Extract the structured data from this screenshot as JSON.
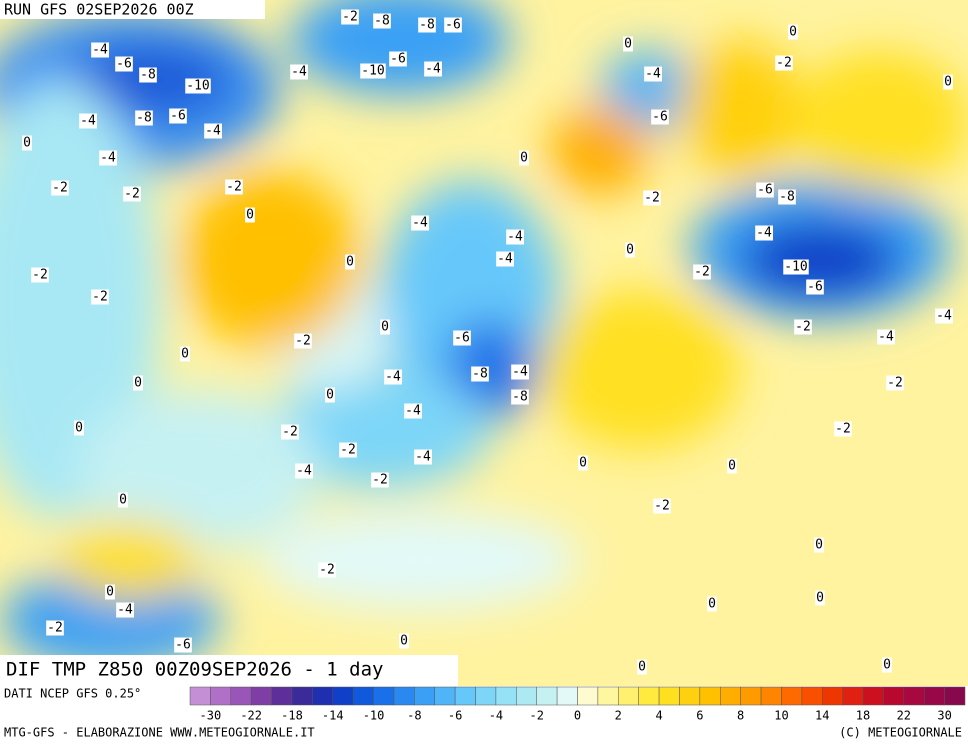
{
  "header": {
    "run": "RUN GFS 02SEP2026 00Z"
  },
  "map": {
    "title": "DIF TMP Z850 00Z09SEP2026 - 1 day",
    "contour_labels": [
      -4,
      -6,
      -8,
      -10,
      -6,
      -8,
      -4,
      -4,
      -4,
      -2,
      -2,
      0,
      -2,
      0,
      -2,
      -2,
      0,
      -2,
      0,
      -8,
      -8,
      -6,
      -2,
      -4,
      -10,
      -6,
      -4,
      -4,
      -6,
      -8,
      -4,
      -8,
      -4,
      -4,
      -2,
      -2,
      -4,
      -2,
      -4,
      -4,
      -4,
      0,
      -2,
      -2,
      -6,
      -4,
      -2,
      -6,
      -8,
      -4,
      -10,
      -6,
      -2,
      -4,
      -4,
      -2,
      -2,
      -2,
      0,
      0,
      0,
      0,
      0,
      0,
      -2,
      0,
      -4,
      -2,
      -6,
      0,
      0,
      0,
      0,
      0,
      0,
      0,
      0,
      0,
      0,
      0
    ]
  },
  "colorbar": {
    "source": "DATI NCEP GFS 0.25°",
    "ticks": [
      -30,
      -22,
      -18,
      -14,
      -10,
      -8,
      -6,
      -4,
      -2,
      0,
      2,
      4,
      6,
      8,
      10,
      14,
      18,
      22,
      30
    ],
    "colors": [
      "#c58fd6",
      "#b070c8",
      "#9a55b8",
      "#7f3ea6",
      "#5e2f9a",
      "#3a2a9a",
      "#1f2fb0",
      "#1040c8",
      "#1058dc",
      "#1a70e8",
      "#2a88f0",
      "#3aa0f5",
      "#50b4f8",
      "#66c8fa",
      "#7dd6f8",
      "#95e2f6",
      "#ace9f3",
      "#c6f1f3",
      "#e2f9f8",
      "#fffbd0",
      "#fff6a0",
      "#fff070",
      "#ffea40",
      "#ffe020",
      "#ffd010",
      "#ffc000",
      "#ffae00",
      "#ff9a00",
      "#ff8400",
      "#ff6a00",
      "#f85000",
      "#ee3600",
      "#e02010",
      "#cc1020",
      "#b80830",
      "#a80840",
      "#980848",
      "#88084e"
    ]
  },
  "footer": {
    "left": "MTG-GFS - ELABORAZIONE WWW.METEOGIORNALE.IT",
    "right": "(C) METEOGIORNALE"
  }
}
